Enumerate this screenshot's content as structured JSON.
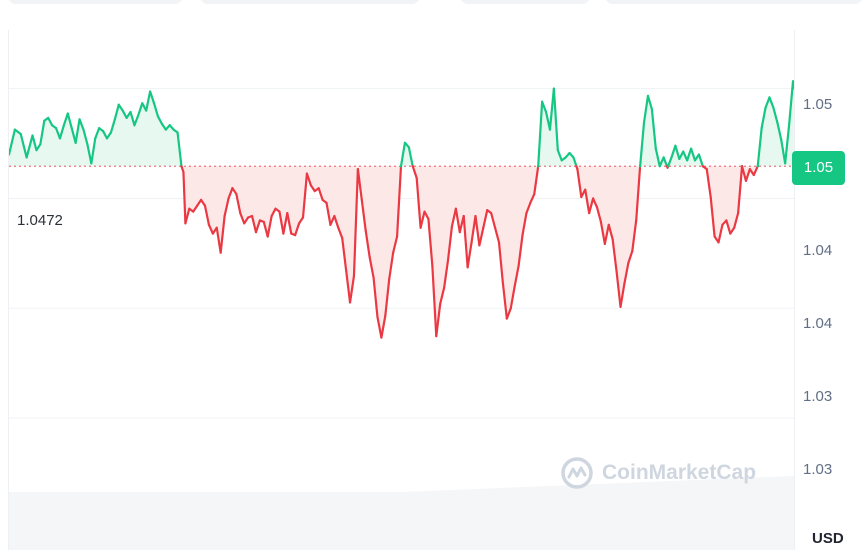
{
  "watermark": {
    "brand": "CoinMarketCap"
  },
  "chart_data": {
    "type": "area",
    "currency": "USD",
    "baseline": 1.0472,
    "baseline_label": "1.0472",
    "current_price_label": "1.05",
    "y_axis_ticks": [
      "1.05",
      "1.04",
      "1.04",
      "1.03",
      "1.03"
    ],
    "y_tick_values": [
      1.0525,
      1.045,
      1.0375,
      1.03,
      1.0225
    ],
    "ylim": [
      1.021,
      1.0565
    ],
    "xlim": [
      0,
      200
    ],
    "grid": "horizontal",
    "colors": {
      "up": "#16c784",
      "down": "#ea3943",
      "up_fill": "#e3f7ee",
      "down_fill": "#fde6e6",
      "grid": "#eff2f5",
      "badge": "#16c784"
    },
    "points": [
      [
        0,
        1.048
      ],
      [
        1.5,
        1.0497
      ],
      [
        3,
        1.0494
      ],
      [
        4.5,
        1.0478
      ],
      [
        6,
        1.0493
      ],
      [
        7,
        1.0483
      ],
      [
        8,
        1.0487
      ],
      [
        9,
        1.0503
      ],
      [
        10,
        1.0505
      ],
      [
        11,
        1.05
      ],
      [
        12,
        1.0498
      ],
      [
        13,
        1.0491
      ],
      [
        14,
        1.05
      ],
      [
        15,
        1.0508
      ],
      [
        16,
        1.0498
      ],
      [
        17,
        1.0488
      ],
      [
        18,
        1.0504
      ],
      [
        19,
        1.0497
      ],
      [
        20,
        1.0487
      ],
      [
        21,
        1.0474
      ],
      [
        22,
        1.0491
      ],
      [
        23,
        1.0498
      ],
      [
        24,
        1.0496
      ],
      [
        25,
        1.0491
      ],
      [
        26,
        1.0495
      ],
      [
        27,
        1.0504
      ],
      [
        28,
        1.0514
      ],
      [
        29,
        1.051
      ],
      [
        30,
        1.0505
      ],
      [
        31,
        1.0509
      ],
      [
        32,
        1.05
      ],
      [
        33,
        1.0507
      ],
      [
        34,
        1.0515
      ],
      [
        35,
        1.051
      ],
      [
        36,
        1.0523
      ],
      [
        37,
        1.0515
      ],
      [
        38,
        1.0506
      ],
      [
        39,
        1.0501
      ],
      [
        40,
        1.0497
      ],
      [
        41,
        1.05
      ],
      [
        42,
        1.0497
      ],
      [
        43,
        1.0495
      ],
      [
        44,
        1.0472
      ],
      [
        44.5,
        1.0468
      ],
      [
        45,
        1.0433
      ],
      [
        46,
        1.0443
      ],
      [
        47,
        1.0441
      ],
      [
        48,
        1.0445
      ],
      [
        49,
        1.0449
      ],
      [
        50,
        1.0445
      ],
      [
        51,
        1.0432
      ],
      [
        52,
        1.0426
      ],
      [
        53,
        1.043
      ],
      [
        54,
        1.0413
      ],
      [
        55,
        1.0438
      ],
      [
        56,
        1.045
      ],
      [
        57,
        1.0457
      ],
      [
        58,
        1.0453
      ],
      [
        59,
        1.044
      ],
      [
        60,
        1.0433
      ],
      [
        61,
        1.0437
      ],
      [
        62,
        1.0438
      ],
      [
        63,
        1.0427
      ],
      [
        64,
        1.0435
      ],
      [
        65,
        1.0434
      ],
      [
        66,
        1.0424
      ],
      [
        67,
        1.0438
      ],
      [
        68,
        1.0443
      ],
      [
        69,
        1.0441
      ],
      [
        70,
        1.0426
      ],
      [
        71,
        1.044
      ],
      [
        72,
        1.0426
      ],
      [
        73,
        1.0425
      ],
      [
        74,
        1.0433
      ],
      [
        75,
        1.0437
      ],
      [
        76,
        1.0467
      ],
      [
        77,
        1.0459
      ],
      [
        78,
        1.0455
      ],
      [
        79,
        1.0457
      ],
      [
        80,
        1.0449
      ],
      [
        81,
        1.0447
      ],
      [
        82,
        1.0432
      ],
      [
        83,
        1.0438
      ],
      [
        84,
        1.043
      ],
      [
        85,
        1.0423
      ],
      [
        86,
        1.0401
      ],
      [
        87,
        1.0379
      ],
      [
        88,
        1.0397
      ],
      [
        89,
        1.047
      ],
      [
        90,
        1.0449
      ],
      [
        91,
        1.0428
      ],
      [
        92,
        1.041
      ],
      [
        93,
        1.0396
      ],
      [
        94,
        1.0369
      ],
      [
        95,
        1.0355
      ],
      [
        96,
        1.037
      ],
      [
        97,
        1.0395
      ],
      [
        98,
        1.0413
      ],
      [
        99,
        1.0424
      ],
      [
        100,
        1.0472
      ],
      [
        101,
        1.0488
      ],
      [
        102,
        1.0485
      ],
      [
        103,
        1.0472
      ],
      [
        104,
        1.0464
      ],
      [
        105,
        1.043
      ],
      [
        106,
        1.0441
      ],
      [
        107,
        1.0436
      ],
      [
        108,
        1.0404
      ],
      [
        109,
        1.0356
      ],
      [
        110,
        1.0378
      ],
      [
        111,
        1.0389
      ],
      [
        112,
        1.0408
      ],
      [
        113,
        1.0431
      ],
      [
        114,
        1.0443
      ],
      [
        115,
        1.0427
      ],
      [
        116,
        1.0438
      ],
      [
        117,
        1.0403
      ],
      [
        118,
        1.042
      ],
      [
        119,
        1.0438
      ],
      [
        120,
        1.0418
      ],
      [
        121,
        1.043
      ],
      [
        122,
        1.0442
      ],
      [
        123,
        1.044
      ],
      [
        124,
        1.043
      ],
      [
        125,
        1.042
      ],
      [
        126,
        1.0392
      ],
      [
        127,
        1.0368
      ],
      [
        128,
        1.0375
      ],
      [
        129,
        1.039
      ],
      [
        130,
        1.0404
      ],
      [
        131,
        1.0425
      ],
      [
        132,
        1.044
      ],
      [
        133,
        1.0447
      ],
      [
        134,
        1.0453
      ],
      [
        135,
        1.0472
      ],
      [
        136,
        1.0516
      ],
      [
        137,
        1.0509
      ],
      [
        138,
        1.0497
      ],
      [
        139,
        1.0525
      ],
      [
        140,
        1.0483
      ],
      [
        141,
        1.0476
      ],
      [
        142,
        1.0478
      ],
      [
        143,
        1.0481
      ],
      [
        144,
        1.0478
      ],
      [
        145,
        1.047
      ],
      [
        146,
        1.0451
      ],
      [
        147,
        1.0456
      ],
      [
        148,
        1.044
      ],
      [
        149,
        1.045
      ],
      [
        150,
        1.0444
      ],
      [
        151,
        1.0434
      ],
      [
        152,
        1.0419
      ],
      [
        153,
        1.0432
      ],
      [
        154,
        1.0422
      ],
      [
        155,
        1.04
      ],
      [
        156,
        1.0376
      ],
      [
        157,
        1.0392
      ],
      [
        158,
        1.0406
      ],
      [
        159,
        1.0414
      ],
      [
        160,
        1.0435
      ],
      [
        161,
        1.0472
      ],
      [
        162,
        1.0502
      ],
      [
        163,
        1.052
      ],
      [
        164,
        1.0511
      ],
      [
        165,
        1.0484
      ],
      [
        166,
        1.0472
      ],
      [
        167,
        1.0478
      ],
      [
        168,
        1.0471
      ],
      [
        169,
        1.0478
      ],
      [
        170,
        1.0486
      ],
      [
        171,
        1.0477
      ],
      [
        172,
        1.0482
      ],
      [
        173,
        1.0476
      ],
      [
        174,
        1.0484
      ],
      [
        175,
        1.0476
      ],
      [
        176,
        1.048
      ],
      [
        177,
        1.0472
      ],
      [
        178,
        1.047
      ],
      [
        179,
        1.0451
      ],
      [
        180,
        1.0424
      ],
      [
        181,
        1.042
      ],
      [
        182,
        1.0432
      ],
      [
        183,
        1.0435
      ],
      [
        184,
        1.0426
      ],
      [
        185,
        1.043
      ],
      [
        186,
        1.044
      ],
      [
        187,
        1.0472
      ],
      [
        188,
        1.0462
      ],
      [
        189,
        1.047
      ],
      [
        190,
        1.0466
      ],
      [
        191,
        1.0472
      ],
      [
        192,
        1.0498
      ],
      [
        193,
        1.0512
      ],
      [
        194,
        1.0519
      ],
      [
        195,
        1.0512
      ],
      [
        196,
        1.0502
      ],
      [
        197,
        1.049
      ],
      [
        198,
        1.0474
      ],
      [
        199,
        1.05
      ],
      [
        200,
        1.053
      ],
      [
        201,
        1.0518
      ],
      [
        202,
        1.0505
      ]
    ]
  }
}
